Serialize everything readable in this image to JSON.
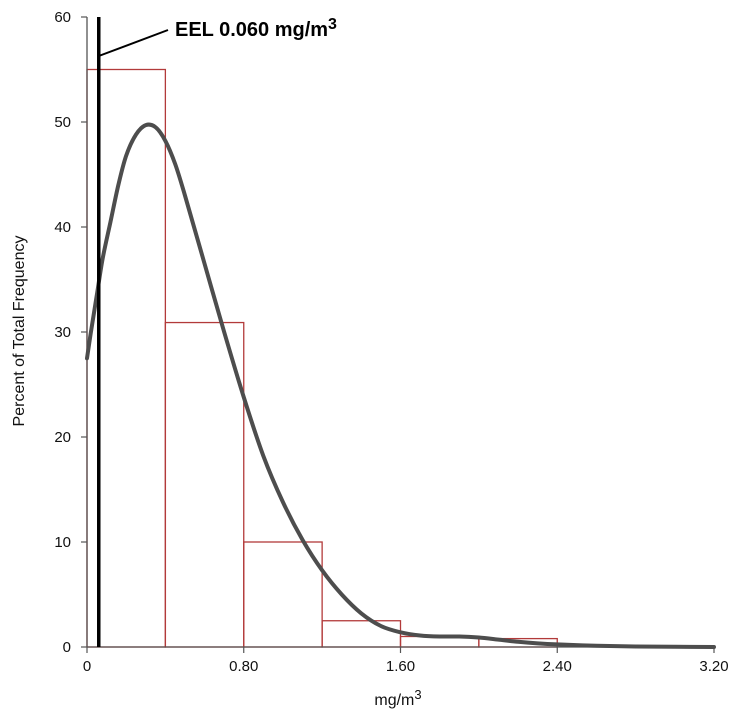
{
  "chart_data": {
    "type": "bar",
    "subtype": "histogram-with-fitted-curve",
    "xlabel": "mg/m",
    "xlabel_superscript": "3",
    "ylabel": "Percent of Total Frequency",
    "xlim": [
      0,
      3.2
    ],
    "ylim": [
      0,
      60
    ],
    "x_ticks": [
      {
        "value": 0,
        "label": "0"
      },
      {
        "value": 0.8,
        "label": "0.80"
      },
      {
        "value": 1.6,
        "label": "1.60"
      },
      {
        "value": 2.4,
        "label": "2.40"
      },
      {
        "value": 3.2,
        "label": "3.20"
      }
    ],
    "y_ticks": [
      {
        "value": 0,
        "label": "0"
      },
      {
        "value": 10,
        "label": "10"
      },
      {
        "value": 20,
        "label": "20"
      },
      {
        "value": 30,
        "label": "30"
      },
      {
        "value": 40,
        "label": "40"
      },
      {
        "value": 50,
        "label": "50"
      },
      {
        "value": 60,
        "label": "60"
      }
    ],
    "bins": [
      {
        "x0": 0.0,
        "x1": 0.4,
        "value": 55.0
      },
      {
        "x0": 0.4,
        "x1": 0.8,
        "value": 30.9
      },
      {
        "x0": 0.8,
        "x1": 1.2,
        "value": 10.0
      },
      {
        "x0": 1.2,
        "x1": 1.6,
        "value": 2.5
      },
      {
        "x0": 1.6,
        "x1": 2.0,
        "value": 1.0
      },
      {
        "x0": 2.0,
        "x1": 2.4,
        "value": 0.8
      }
    ],
    "curve": {
      "x": [
        0.0,
        0.02,
        0.05,
        0.08,
        0.12,
        0.16,
        0.2,
        0.25,
        0.3,
        0.35,
        0.4,
        0.45,
        0.5,
        0.6,
        0.7,
        0.8,
        0.9,
        1.0,
        1.1,
        1.2,
        1.3,
        1.4,
        1.5,
        1.6,
        1.7,
        1.8,
        1.9,
        2.0,
        2.1,
        2.2,
        2.3,
        2.4,
        2.6,
        2.8,
        3.0,
        3.2
      ],
      "y": [
        27.5,
        30.0,
        33.5,
        37.0,
        40.5,
        44.0,
        46.8,
        48.8,
        49.7,
        49.5,
        48.2,
        46.0,
        43.0,
        36.5,
        30.0,
        23.8,
        18.2,
        13.8,
        10.2,
        7.3,
        5.0,
        3.2,
        2.0,
        1.4,
        1.1,
        1.0,
        1.0,
        0.9,
        0.7,
        0.5,
        0.35,
        0.25,
        0.12,
        0.05,
        0.02,
        0.0
      ]
    },
    "reference_line": {
      "x": 0.06,
      "label": "EEL 0.060 mg/m",
      "label_superscript": "3"
    },
    "colors": {
      "bar_stroke": "#b23a3a",
      "curve": "#4d4d4d",
      "reference_line": "#000000",
      "axis": "#555555"
    },
    "grid": false,
    "legend": "none"
  }
}
